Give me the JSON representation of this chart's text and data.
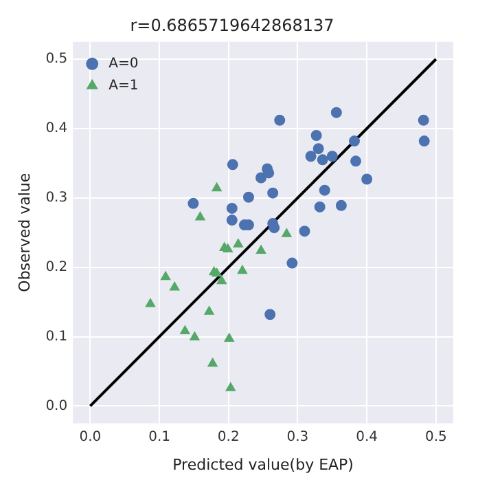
{
  "chart_data": {
    "type": "scatter",
    "title": "r=0.6865719642868137",
    "xlabel": "Predicted value(by EAP)",
    "ylabel": "Observed value",
    "xlim": [
      -0.025,
      0.525
    ],
    "ylim": [
      -0.025,
      0.525
    ],
    "xticks": [
      {
        "value": 0,
        "label": "0.0"
      },
      0.1,
      0.2,
      0.3,
      0.4,
      0.5
    ],
    "yticks": [
      {
        "value": 0,
        "label": "0.0"
      },
      0.1,
      0.2,
      0.3,
      0.4,
      0.5
    ],
    "grid": true,
    "legend": "top left",
    "series": [
      {
        "name": "A=0",
        "color": "#4c72b0",
        "marker": "circle",
        "x": [
          0.206,
          0.274,
          0.356,
          0.482,
          0.483,
          0.327,
          0.33,
          0.319,
          0.336,
          0.35,
          0.382,
          0.384,
          0.4,
          0.256,
          0.258,
          0.247,
          0.264,
          0.339,
          0.332,
          0.363,
          0.229,
          0.264,
          0.266,
          0.229,
          0.31,
          0.149,
          0.205,
          0.205,
          0.223,
          0.292,
          0.26
        ],
        "values": [
          0.348,
          0.412,
          0.423,
          0.412,
          0.382,
          0.39,
          0.371,
          0.36,
          0.355,
          0.36,
          0.382,
          0.353,
          0.327,
          0.342,
          0.336,
          0.329,
          0.307,
          0.311,
          0.287,
          0.289,
          0.301,
          0.263,
          0.257,
          0.261,
          0.252,
          0.292,
          0.285,
          0.268,
          0.261,
          0.206,
          0.132
        ]
      },
      {
        "name": "A=1",
        "color": "#55a868",
        "marker": "triangle",
        "x": [
          0.183,
          0.159,
          0.284,
          0.247,
          0.194,
          0.199,
          0.214,
          0.109,
          0.122,
          0.087,
          0.179,
          0.183,
          0.22,
          0.19,
          0.172,
          0.137,
          0.151,
          0.201,
          0.177,
          0.203
        ],
        "values": [
          0.314,
          0.272,
          0.248,
          0.224,
          0.228,
          0.226,
          0.233,
          0.186,
          0.171,
          0.147,
          0.193,
          0.191,
          0.195,
          0.18,
          0.136,
          0.108,
          0.099,
          0.097,
          0.061,
          0.026
        ]
      },
      {
        "type": "line",
        "color": "#000000",
        "marker": "none",
        "x": [
          0,
          0.5
        ],
        "values": [
          0,
          0.5
        ]
      }
    ]
  }
}
